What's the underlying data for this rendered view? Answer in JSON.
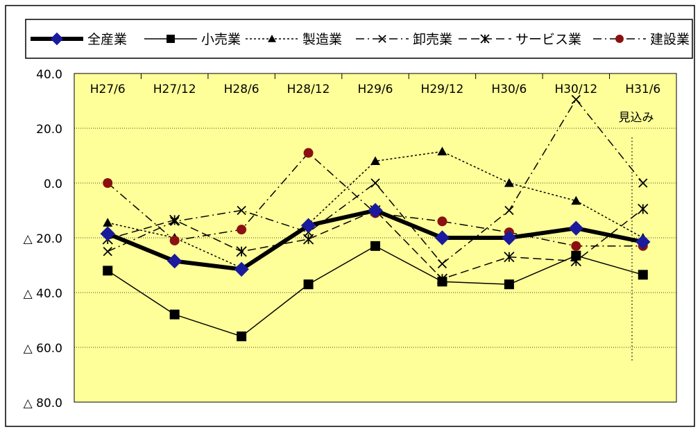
{
  "chart_data": {
    "type": "line",
    "categories": [
      "H27/6",
      "H27/12",
      "H28/6",
      "H28/12",
      "H29/6",
      "H29/12",
      "H30/6",
      "H30/12",
      "H31/6"
    ],
    "ylim": [
      -80,
      40
    ],
    "yticks": [
      40,
      20,
      0,
      -20,
      -40,
      -60,
      -80
    ],
    "ytick_labels": [
      "40.0",
      "20.0",
      "0.0",
      "△ 20.0",
      "△ 40.0",
      "△ 60.0",
      "△ 80.0"
    ],
    "grid": true,
    "legend_position": "top",
    "annotation": "見込み",
    "series": [
      {
        "name": "全産業",
        "style": "bold-solid",
        "marker": "diamond",
        "color": "#1a1a9c",
        "values": [
          -18.5,
          -28.5,
          -31.5,
          -15.5,
          -10,
          -20,
          -20,
          -16.5,
          -21.5
        ]
      },
      {
        "name": "小売業",
        "style": "solid",
        "marker": "square",
        "color": "#000000",
        "values": [
          -32,
          -48,
          -56,
          -37,
          -23,
          -36,
          -37,
          -26.5,
          -33.5
        ]
      },
      {
        "name": "製造業",
        "style": "dotted",
        "marker": "triangle",
        "color": "#000000",
        "values": [
          -14.5,
          -20,
          -31,
          -15,
          8,
          11.5,
          0,
          -6.5,
          -20
        ]
      },
      {
        "name": "卸売業",
        "style": "dashdot",
        "marker": "x",
        "color": "#000000",
        "values": [
          -25,
          -14,
          -10,
          -18,
          0,
          -29.5,
          -10,
          30.5,
          0
        ]
      },
      {
        "name": "サービス業",
        "style": "dashed",
        "marker": "asterisk",
        "color": "#000000",
        "values": [
          -20.5,
          -13.5,
          -25,
          -20.5,
          -10,
          -35,
          -27,
          -28.5,
          -9.5
        ]
      },
      {
        "name": "建設業",
        "style": "dashdot",
        "marker": "circle",
        "color": "#8b1010",
        "values": [
          0,
          -21,
          -17,
          11,
          -11,
          -14,
          -18,
          -23,
          -23
        ]
      }
    ],
    "colors": {
      "plot_bg": "#ffff99",
      "grid": "#000000",
      "frame": "#000000"
    }
  }
}
